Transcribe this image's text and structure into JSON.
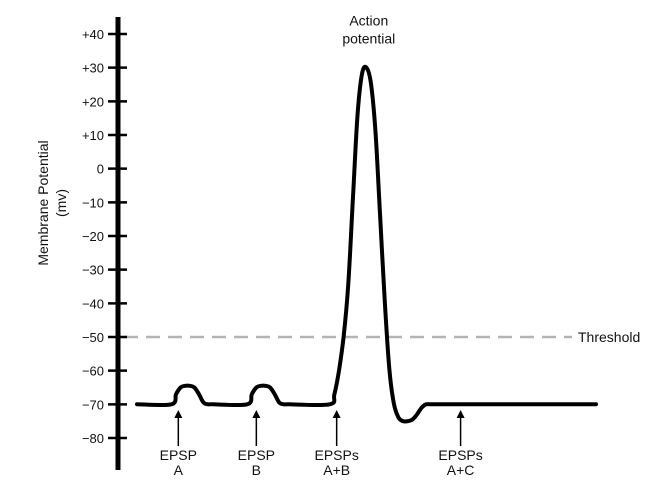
{
  "chart_data": {
    "type": "line",
    "title": "",
    "xlabel": "",
    "ylabel": [
      "Membrane Potential",
      "(mv)"
    ],
    "ylim": [
      -90,
      45
    ],
    "xlim": [
      0,
      100
    ],
    "yticks": [
      40,
      30,
      20,
      10,
      0,
      -10,
      -20,
      -30,
      -40,
      -50,
      -60,
      -70,
      -80
    ],
    "ytick_labels": [
      "+40",
      "+30",
      "+20",
      "+10",
      "0",
      "−10",
      "−20",
      "−30",
      "−40",
      "−50",
      "−60",
      "−70",
      "−80"
    ],
    "grid": false,
    "series": [
      {
        "x": [
          0,
          7.5,
          8.5,
          9.5,
          10.5,
          11.5,
          12.5,
          13.5,
          14.5,
          15.5,
          16.5,
          24.0,
          25.0,
          26.0,
          27.0,
          28.0,
          29.0,
          30.0,
          31.0,
          32.0,
          33.0,
          42.0,
          43.0,
          44.0,
          45.0,
          46.0,
          47.0,
          48.0,
          49.0,
          50.0,
          51.0,
          52.0,
          53.0,
          54.0,
          55.0,
          56.0,
          57.0,
          58.0,
          59.0,
          60.0,
          61.0,
          62.0,
          63.0,
          64.0,
          65.0,
          66.0,
          67.0,
          68.0,
          69.0,
          70.0,
          72.0,
          100.0
        ],
        "y": [
          -70,
          -70,
          -67,
          -65,
          -64.5,
          -64.5,
          -65,
          -67,
          -69.5,
          -70,
          -70,
          -70,
          -67,
          -65,
          -64.5,
          -64.5,
          -65,
          -67,
          -69.5,
          -70,
          -70,
          -70,
          -67,
          -60,
          -50,
          -35,
          -10,
          15,
          28,
          30,
          25,
          10,
          -15,
          -40,
          -60,
          -70,
          -74,
          -75,
          -75,
          -74.5,
          -73,
          -71,
          -70,
          -70,
          -70,
          -70,
          -70,
          -70,
          -70,
          -70,
          -70,
          -70
        ]
      }
    ],
    "threshold": {
      "value": -50,
      "label": "Threshold"
    },
    "annotations": [
      {
        "lines": [
          "Action",
          "potential"
        ],
        "x": 50.5,
        "y": 30
      },
      {
        "lines": [
          "EPSP",
          "A"
        ],
        "x": 9
      },
      {
        "lines": [
          "EPSP",
          "B"
        ],
        "x": 26
      },
      {
        "lines": [
          "EPSPs",
          "A+B"
        ],
        "x": 43.5
      },
      {
        "lines": [
          "EPSPs",
          "A+C"
        ],
        "x": 70.5
      }
    ]
  }
}
